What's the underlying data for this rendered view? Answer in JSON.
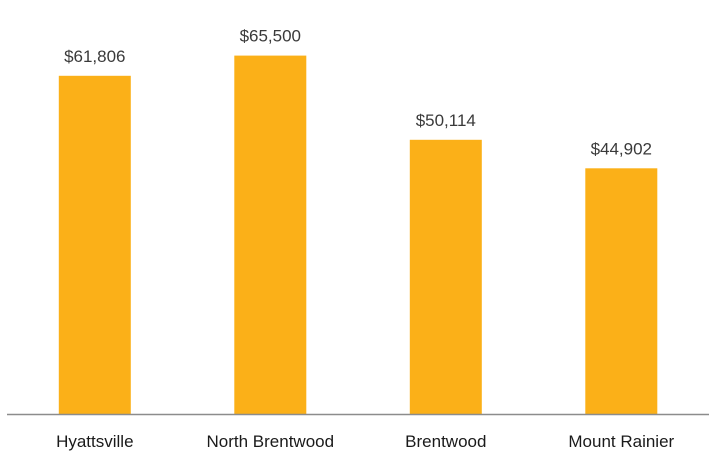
{
  "chart_data": {
    "type": "bar",
    "categories": [
      "Hyattsville",
      "North Brentwood",
      "Brentwood",
      "Mount Rainier"
    ],
    "values": [
      61806,
      65500,
      50114,
      44902
    ],
    "data_labels": [
      "$61,806",
      "$65,500",
      "$50,114",
      "$44,902"
    ],
    "title": "",
    "xlabel": "",
    "ylabel": "",
    "ylim": [
      0,
      72000
    ],
    "grid": false,
    "legend": "none",
    "colors": {
      "bar": "#FBB018",
      "axis": "#8c8c8c"
    }
  }
}
